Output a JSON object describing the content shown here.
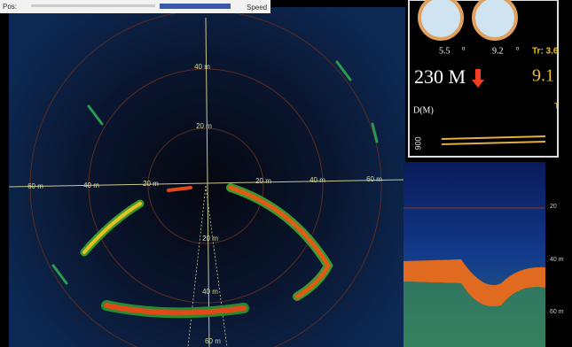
{
  "toolbar": {
    "pos_label": "Pos:",
    "speed_label": "Speed"
  },
  "sonar": {
    "range_labels": [
      "40 m",
      "20 m",
      "60 m",
      "40 m",
      "20 m",
      "20 m",
      "40 m",
      "60 m",
      "20 m",
      "40 m",
      "60 m"
    ]
  },
  "instruments": {
    "roll": "5.5",
    "roll_unit": "o",
    "pitch": "9.2",
    "pitch_unit": "o",
    "track": "Tr: 3.6",
    "depth": "230 M",
    "speed": "9.1",
    "depth_label": "D(M)",
    "cut_label": "T",
    "side_value": "900"
  },
  "echogram": {
    "depth_labels": [
      "20",
      "40 m",
      "60 m"
    ]
  }
}
